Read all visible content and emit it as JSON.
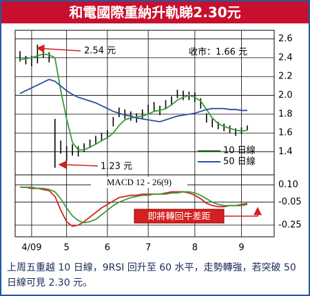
{
  "title": "和電國際重納升軌睇2.30元",
  "caption": "上周五重越 10 日線，9RSI 回升至 60 水平，走勢轉強，若突破 50 日線可見 2.30 元。",
  "chart_data": [
    {
      "type": "line",
      "categories": [
        null,
        null,
        "4/09",
        null,
        null,
        null,
        null,
        null,
        "5",
        null,
        null,
        null,
        null,
        null,
        null,
        "6",
        null,
        null,
        null,
        null,
        null,
        null,
        "7",
        null,
        null,
        null,
        null,
        null,
        null,
        null,
        "8",
        null,
        null,
        null,
        null,
        null,
        null,
        null,
        "9",
        null
      ],
      "bars": {
        "color": "#000000",
        "high": [
          2.47,
          2.42,
          2.42,
          2.54,
          2.5,
          2.46,
          1.75,
          1.52,
          1.46,
          1.48,
          1.46,
          1.49,
          1.53,
          1.57,
          1.6,
          1.63,
          1.77,
          1.87,
          1.85,
          1.83,
          1.81,
          1.85,
          1.9,
          1.93,
          1.89,
          1.95,
          1.99,
          2.06,
          2.05,
          2.04,
          2.03,
          1.97,
          1.81,
          1.75,
          1.72,
          1.7,
          1.68,
          1.65,
          1.66,
          1.68
        ],
        "low": [
          2.36,
          2.33,
          2.31,
          2.34,
          2.4,
          2.35,
          1.23,
          1.38,
          1.3,
          1.36,
          1.35,
          1.4,
          1.44,
          1.48,
          1.51,
          1.54,
          1.67,
          1.77,
          1.75,
          1.73,
          1.71,
          1.75,
          1.8,
          1.83,
          1.79,
          1.85,
          1.89,
          1.97,
          1.95,
          1.95,
          1.93,
          1.86,
          1.71,
          1.66,
          1.64,
          1.62,
          1.6,
          1.57,
          1.59,
          1.63
        ]
      },
      "series": [
        {
          "name": "10 日線",
          "color": "#3a9a3a",
          "values": [
            2.38,
            2.39,
            2.4,
            2.42,
            2.44,
            2.43,
            2.4,
            2.05,
            1.75,
            1.5,
            1.42,
            1.42,
            1.45,
            1.48,
            1.52,
            1.55,
            1.6,
            1.68,
            1.74,
            1.76,
            1.77,
            1.78,
            1.8,
            1.83,
            1.84,
            1.86,
            1.9,
            1.95,
            1.98,
            2.0,
            1.98,
            1.94,
            1.85,
            1.76,
            1.7,
            1.67,
            1.65,
            1.63,
            1.62,
            1.63
          ]
        },
        {
          "name": "50 日線",
          "color": "#2a4fa0",
          "values": [
            2.02,
            2.05,
            2.08,
            2.11,
            2.14,
            2.17,
            2.15,
            2.1,
            2.05,
            2.01,
            1.98,
            1.96,
            1.94,
            1.92,
            1.89,
            1.86,
            1.83,
            1.81,
            1.79,
            1.78,
            1.76,
            1.75,
            1.74,
            1.73,
            1.72,
            1.74,
            1.76,
            1.78,
            1.79,
            1.8,
            1.81,
            1.83,
            1.85,
            1.86,
            1.86,
            1.86,
            1.85,
            1.85,
            1.84,
            1.84
          ]
        }
      ],
      "ylim": [
        1.17,
        2.67
      ],
      "yticks": [
        1.4,
        1.6,
        1.8,
        {
          "value": 2,
          "label": "2.0"
        },
        2.2,
        2.4,
        2.6
      ],
      "grid": true,
      "annotations": [
        "2.54 元",
        "1.23 元",
        "收市：1.66 元"
      ]
    },
    {
      "type": "line",
      "title": "MACD 12 - 26(9)",
      "series": [
        {
          "color": "#d42020",
          "values": [
            0.08,
            0.08,
            0.07,
            0.07,
            0.06,
            0.05,
            0.0,
            -0.12,
            -0.22,
            -0.26,
            -0.25,
            -0.22,
            -0.18,
            -0.14,
            -0.1,
            -0.07,
            -0.04,
            -0.01,
            0.0,
            0.01,
            0.01,
            0.02,
            0.02,
            0.02,
            0.02,
            0.03,
            0.04,
            0.04,
            0.04,
            0.03,
            0.01,
            -0.02,
            -0.06,
            -0.08,
            -0.09,
            -0.09,
            -0.08,
            -0.08,
            -0.07,
            -0.06
          ]
        },
        {
          "color": "#3a9a3a",
          "values": [
            0.08,
            0.08,
            0.08,
            0.07,
            0.07,
            0.06,
            0.04,
            -0.02,
            -0.1,
            -0.17,
            -0.21,
            -0.23,
            -0.22,
            -0.2,
            -0.16,
            -0.12,
            -0.08,
            -0.05,
            -0.03,
            -0.01,
            0.0,
            0.01,
            0.01,
            0.02,
            0.02,
            0.02,
            0.03,
            0.03,
            0.04,
            0.04,
            0.03,
            0.01,
            -0.02,
            -0.05,
            -0.07,
            -0.08,
            -0.08,
            -0.08,
            -0.08,
            -0.07
          ]
        }
      ],
      "ylim": [
        -0.31,
        0.17
      ],
      "yticks": [
        {
          "value": 0.1,
          "label": "0.10"
        },
        -0.05,
        -0.25
      ],
      "grid": true,
      "annotations": [
        "即將轉回牛差距"
      ]
    }
  ]
}
